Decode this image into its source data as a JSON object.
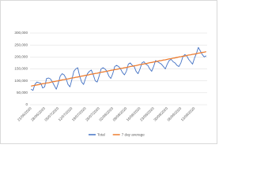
{
  "chart_data": {
    "type": "line",
    "categories": [
      "21/06/2020",
      null,
      null,
      null,
      null,
      null,
      null,
      "28/06/2020",
      null,
      null,
      null,
      null,
      null,
      null,
      "05/07/2020",
      null,
      null,
      null,
      null,
      null,
      null,
      "12/07/2020",
      null,
      null,
      null,
      null,
      null,
      null,
      "19/07/2020",
      null,
      null,
      null,
      null,
      null,
      null,
      "26/07/2020",
      null,
      null,
      null,
      null,
      null,
      null,
      "02/08/2020",
      null,
      null,
      null,
      null,
      null,
      null,
      "09/08/2020",
      null,
      null,
      null,
      null,
      null,
      null,
      "16/08/2020",
      null,
      null,
      null,
      null,
      null,
      null,
      "23/08/2020",
      null,
      null,
      null,
      null,
      null,
      null,
      "30/08/2020",
      null,
      null,
      null,
      null,
      null,
      null,
      "06/09/2020",
      null,
      null,
      null,
      null,
      null,
      null,
      "13/09/2020",
      null,
      null,
      null,
      null,
      null,
      null
    ],
    "series": [
      {
        "name": "Total",
        "color": "#4472c4",
        "values": [
          65000,
          60000,
          85000,
          95000,
          92000,
          90000,
          70000,
          75000,
          110000,
          112000,
          108000,
          95000,
          80000,
          65000,
          90000,
          120000,
          130000,
          125000,
          110000,
          85000,
          75000,
          105000,
          140000,
          150000,
          155000,
          120000,
          95000,
          85000,
          110000,
          130000,
          140000,
          145000,
          125000,
          100000,
          95000,
          120000,
          150000,
          155000,
          150000,
          140000,
          120000,
          110000,
          130000,
          160000,
          165000,
          160000,
          150000,
          135000,
          125000,
          140000,
          170000,
          175000,
          165000,
          160000,
          140000,
          130000,
          150000,
          175000,
          180000,
          170000,
          165000,
          150000,
          140000,
          160000,
          185000,
          180000,
          175000,
          170000,
          160000,
          150000,
          170000,
          185000,
          190000,
          180000,
          175000,
          165000,
          160000,
          175000,
          200000,
          210000,
          205000,
          190000,
          180000,
          170000,
          195000,
          215000,
          240000,
          225000,
          210000,
          200000,
          205000
        ]
      },
      {
        "name": "7 day average",
        "color": "#ed7d31",
        "values": [
          78000,
          80000,
          81000,
          83000,
          84000,
          86000,
          88000,
          89000,
          91000,
          92000,
          94000,
          96000,
          97000,
          99000,
          100000,
          102000,
          104000,
          105000,
          107000,
          108000,
          110000,
          112000,
          113000,
          115000,
          116000,
          118000,
          120000,
          121000,
          123000,
          124000,
          126000,
          128000,
          129000,
          131000,
          132000,
          134000,
          136000,
          137000,
          139000,
          140000,
          142000,
          144000,
          145000,
          147000,
          148000,
          150000,
          152000,
          153000,
          155000,
          156000,
          158000,
          160000,
          161000,
          163000,
          164000,
          166000,
          168000,
          169000,
          171000,
          172000,
          174000,
          176000,
          177000,
          179000,
          180000,
          182000,
          184000,
          185000,
          187000,
          188000,
          190000,
          192000,
          193000,
          195000,
          196000,
          198000,
          200000,
          201000,
          203000,
          204000,
          206000,
          208000,
          209000,
          211000,
          212000,
          214000,
          216000,
          217000,
          219000,
          220000,
          222000
        ]
      }
    ],
    "ylim": [
      0,
      300000
    ],
    "yticks": [
      0,
      {
        "value": 50000,
        "label": "50,000"
      },
      {
        "value": 100000,
        "label": "100,000"
      },
      {
        "value": 150000,
        "label": "150,000"
      },
      {
        "value": 200000,
        "label": "200,000"
      },
      {
        "value": 250000,
        "label": "250,000"
      },
      {
        "value": 300000,
        "label": "300,000"
      }
    ],
    "grid": true,
    "legend": "bottom"
  }
}
